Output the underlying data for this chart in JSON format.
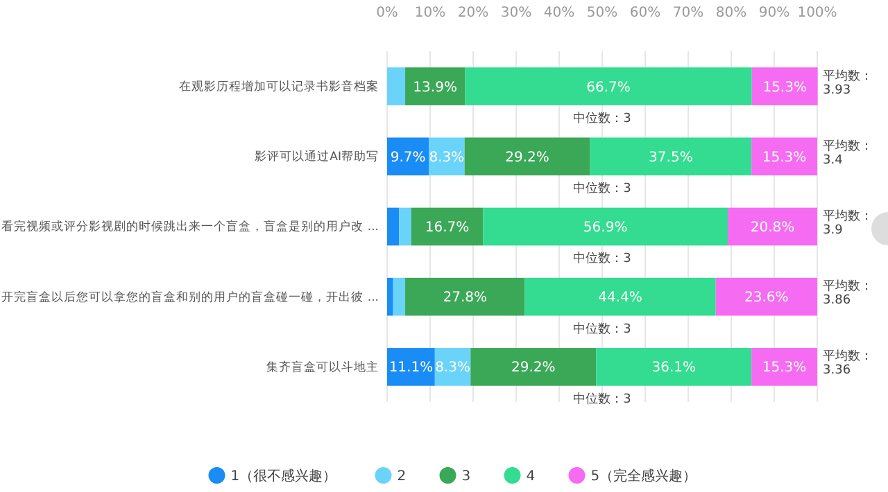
{
  "chart_data": {
    "type": "bar",
    "orientation": "horizontal",
    "stacked": true,
    "categories": [
      "在观影历程增加可以记录书影音档案",
      "影评可以通过AI帮助写",
      "看完视频或评分影视剧的时候跳出来一个盲盒，盲盒是别的用户改 ...",
      "开完盲盒以后您可以拿您的盲盒和别的用户的盲盒碰一碰，开出彼 ...",
      "集齐盲盒可以斗地主"
    ],
    "series": [
      {
        "name": "1（很不感兴趣）",
        "color": "#1a8cf5",
        "values": [
          0,
          9.7,
          2.8,
          1.4,
          11.1
        ],
        "value_labels": [
          null,
          "9.7%",
          null,
          null,
          "11.1%"
        ]
      },
      {
        "name": "2",
        "color": "#6ad3fa",
        "values": [
          4.2,
          8.3,
          2.8,
          2.8,
          8.3
        ],
        "value_labels": [
          null,
          "8.3%",
          null,
          null,
          "8.3%"
        ]
      },
      {
        "name": "3",
        "color": "#3aa856",
        "values": [
          13.9,
          29.2,
          16.7,
          27.8,
          29.2
        ],
        "value_labels": [
          "13.9%",
          "29.2%",
          "16.7%",
          "27.8%",
          "29.2%"
        ]
      },
      {
        "name": "4",
        "color": "#33dc91",
        "values": [
          66.7,
          37.5,
          56.9,
          44.4,
          36.1
        ],
        "value_labels": [
          "66.7%",
          "37.5%",
          "56.9%",
          "44.4%",
          "36.1%"
        ]
      },
      {
        "name": "5（完全感兴趣）",
        "color": "#f56cf2",
        "values": [
          15.3,
          15.3,
          20.8,
          23.6,
          15.3
        ],
        "value_labels": [
          "15.3%",
          "15.3%",
          "20.8%",
          "23.6%",
          "15.3%"
        ]
      }
    ],
    "xlim": [
      0,
      100
    ],
    "xticks": [
      {
        "value": 0,
        "label": "0%"
      },
      {
        "value": 10,
        "label": "10%"
      },
      {
        "value": 20,
        "label": "20%"
      },
      {
        "value": 30,
        "label": "30%"
      },
      {
        "value": 40,
        "label": "40%"
      },
      {
        "value": 50,
        "label": "50%"
      },
      {
        "value": 60,
        "label": "60%"
      },
      {
        "value": 70,
        "label": "70%"
      },
      {
        "value": 80,
        "label": "80%"
      },
      {
        "value": 90,
        "label": "90%"
      },
      {
        "value": 100,
        "label": "100%"
      }
    ],
    "grid": "x",
    "legend": "bottom",
    "annotations": [
      "平均数：\n3.93",
      "平均数：\n3.4",
      "平均数：\n3.9",
      "平均数：\n3.86",
      "平均数：\n3.36",
      "中位数：3",
      "中位数：3",
      "中位数：3",
      "中位数：3",
      "中位数：3"
    ]
  }
}
